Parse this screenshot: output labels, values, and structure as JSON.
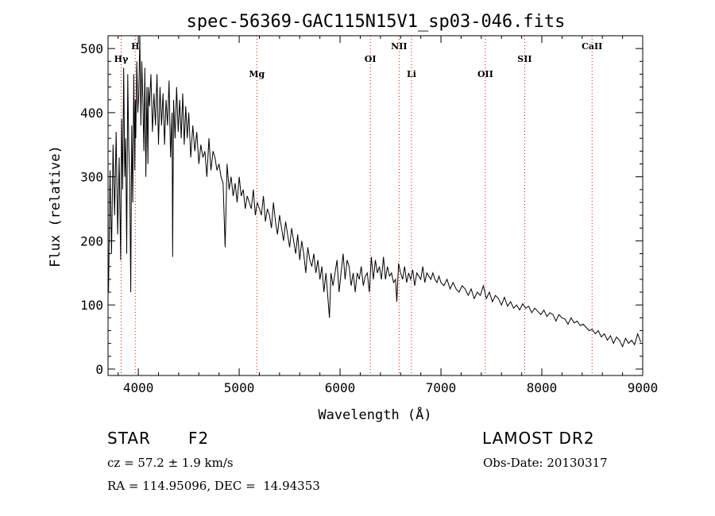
{
  "chart_data": {
    "type": "line",
    "title": "spec-56369-GAC115N15V1_sp03-046.fits",
    "xlabel": "Wavelength (Å)",
    "ylabel": "Flux (relative)",
    "xlim": [
      3700,
      9000
    ],
    "ylim": [
      -10,
      520
    ],
    "xticks": [
      4000,
      5000,
      6000,
      7000,
      8000,
      9000
    ],
    "yticks": [
      0,
      100,
      200,
      300,
      400,
      500
    ],
    "grid": false,
    "line_color": "#000000",
    "marker_color": "#ff0000",
    "lines": [
      {
        "label": "Hγ",
        "x": 3830
      },
      {
        "label": "H",
        "x": 3970
      },
      {
        "label": "Mg",
        "x": 5175
      },
      {
        "label": "OI",
        "x": 6300
      },
      {
        "label": "NII",
        "x": 6585
      },
      {
        "label": "Li",
        "x": 6708
      },
      {
        "label": "OII",
        "x": 7440
      },
      {
        "label": "SII",
        "x": 7830
      },
      {
        "label": "CaII",
        "x": 8498
      }
    ],
    "series": [
      {
        "x": [
          3705,
          3720,
          3735,
          3750,
          3765,
          3780,
          3795,
          3810,
          3825,
          3835,
          3845,
          3855,
          3865,
          3875,
          3885,
          3895,
          3905,
          3915,
          3925,
          3935,
          3945,
          3955,
          3965,
          3970,
          3975,
          3985,
          3995,
          4005,
          4015,
          4025,
          4035,
          4045,
          4055,
          4065,
          4075,
          4085,
          4095,
          4101,
          4110,
          4125,
          4140,
          4155,
          4170,
          4185,
          4200,
          4215,
          4230,
          4245,
          4260,
          4275,
          4290,
          4305,
          4320,
          4335,
          4340,
          4350,
          4365,
          4380,
          4395,
          4410,
          4425,
          4440,
          4455,
          4470,
          4485,
          4500,
          4520,
          4540,
          4560,
          4580,
          4600,
          4620,
          4640,
          4660,
          4680,
          4700,
          4720,
          4740,
          4760,
          4780,
          4800,
          4820,
          4840,
          4861,
          4880,
          4900,
          4920,
          4940,
          4960,
          4980,
          5000,
          5020,
          5040,
          5060,
          5080,
          5100,
          5120,
          5140,
          5160,
          5180,
          5200,
          5220,
          5240,
          5260,
          5280,
          5300,
          5320,
          5340,
          5360,
          5380,
          5400,
          5420,
          5440,
          5460,
          5480,
          5500,
          5520,
          5540,
          5560,
          5580,
          5600,
          5620,
          5640,
          5660,
          5680,
          5700,
          5720,
          5740,
          5760,
          5780,
          5800,
          5820,
          5840,
          5860,
          5880,
          5895,
          5910,
          5930,
          5950,
          5970,
          5990,
          6010,
          6030,
          6050,
          6070,
          6090,
          6110,
          6130,
          6150,
          6170,
          6190,
          6210,
          6230,
          6250,
          6270,
          6290,
          6310,
          6330,
          6350,
          6370,
          6390,
          6410,
          6430,
          6450,
          6470,
          6490,
          6510,
          6530,
          6550,
          6563,
          6580,
          6600,
          6620,
          6640,
          6660,
          6680,
          6700,
          6720,
          6740,
          6760,
          6780,
          6800,
          6820,
          6840,
          6860,
          6880,
          6900,
          6920,
          6940,
          6960,
          6980,
          7000,
          7030,
          7060,
          7090,
          7120,
          7150,
          7180,
          7210,
          7240,
          7270,
          7300,
          7330,
          7360,
          7390,
          7420,
          7450,
          7480,
          7510,
          7540,
          7570,
          7600,
          7630,
          7660,
          7690,
          7720,
          7750,
          7780,
          7810,
          7840,
          7870,
          7900,
          7930,
          7960,
          7990,
          8020,
          8050,
          8080,
          8110,
          8140,
          8170,
          8200,
          8230,
          8260,
          8290,
          8320,
          8350,
          8380,
          8410,
          8440,
          8470,
          8500,
          8530,
          8560,
          8590,
          8620,
          8650,
          8680,
          8710,
          8740,
          8770,
          8800,
          8830,
          8860,
          8890,
          8920,
          8950,
          8980
        ],
        "values": [
          120,
          310,
          180,
          350,
          240,
          370,
          210,
          330,
          170,
          390,
          280,
          470,
          300,
          360,
          180,
          460,
          350,
          300,
          120,
          380,
          260,
          460,
          310,
          420,
          360,
          480,
          400,
          430,
          520,
          380,
          480,
          420,
          340,
          470,
          300,
          440,
          320,
          440,
          410,
          460,
          370,
          430,
          380,
          460,
          350,
          440,
          380,
          430,
          350,
          420,
          380,
          450,
          330,
          400,
          175,
          420,
          360,
          440,
          370,
          420,
          360,
          430,
          350,
          410,
          360,
          400,
          330,
          380,
          340,
          370,
          320,
          350,
          330,
          340,
          300,
          360,
          310,
          340,
          330,
          310,
          320,
          300,
          290,
          190,
          320,
          280,
          300,
          270,
          290,
          260,
          300,
          270,
          280,
          250,
          270,
          260,
          250,
          280,
          240,
          260,
          250,
          240,
          270,
          230,
          250,
          240,
          220,
          260,
          230,
          210,
          240,
          220,
          200,
          230,
          210,
          190,
          220,
          200,
          180,
          210,
          170,
          200,
          180,
          150,
          190,
          170,
          160,
          180,
          150,
          170,
          140,
          160,
          120,
          150,
          110,
          80,
          150,
          130,
          150,
          170,
          120,
          150,
          180,
          140,
          170,
          160,
          130,
          150,
          120,
          150,
          140,
          160,
          130,
          145,
          150,
          120,
          175,
          140,
          170,
          150,
          160,
          140,
          175,
          140,
          160,
          145,
          150,
          135,
          140,
          105,
          165,
          150,
          140,
          160,
          135,
          150,
          140,
          155,
          130,
          150,
          145,
          140,
          160,
          135,
          150,
          145,
          140,
          150,
          140,
          135,
          145,
          135,
          130,
          140,
          125,
          135,
          125,
          120,
          130,
          125,
          115,
          125,
          110,
          120,
          115,
          130,
          110,
          120,
          105,
          115,
          110,
          100,
          112,
          98,
          105,
          95,
          100,
          92,
          102,
          95,
          98,
          88,
          95,
          90,
          85,
          92,
          82,
          88,
          85,
          75,
          85,
          80,
          78,
          70,
          80,
          72,
          75,
          68,
          70,
          65,
          60,
          62,
          55,
          60,
          50,
          55,
          45,
          52,
          40,
          50,
          45,
          35,
          48,
          40,
          45,
          38,
          55,
          42
        ]
      }
    ]
  },
  "info": {
    "object_class": "STAR",
    "subclass": "F2",
    "survey": "LAMOST DR2",
    "cz": "cz = 57.2 ± 1.9 km/s",
    "obs_date": "Obs-Date: 20130317",
    "coords": "RA = 114.95096, DEC =  14.94353"
  }
}
